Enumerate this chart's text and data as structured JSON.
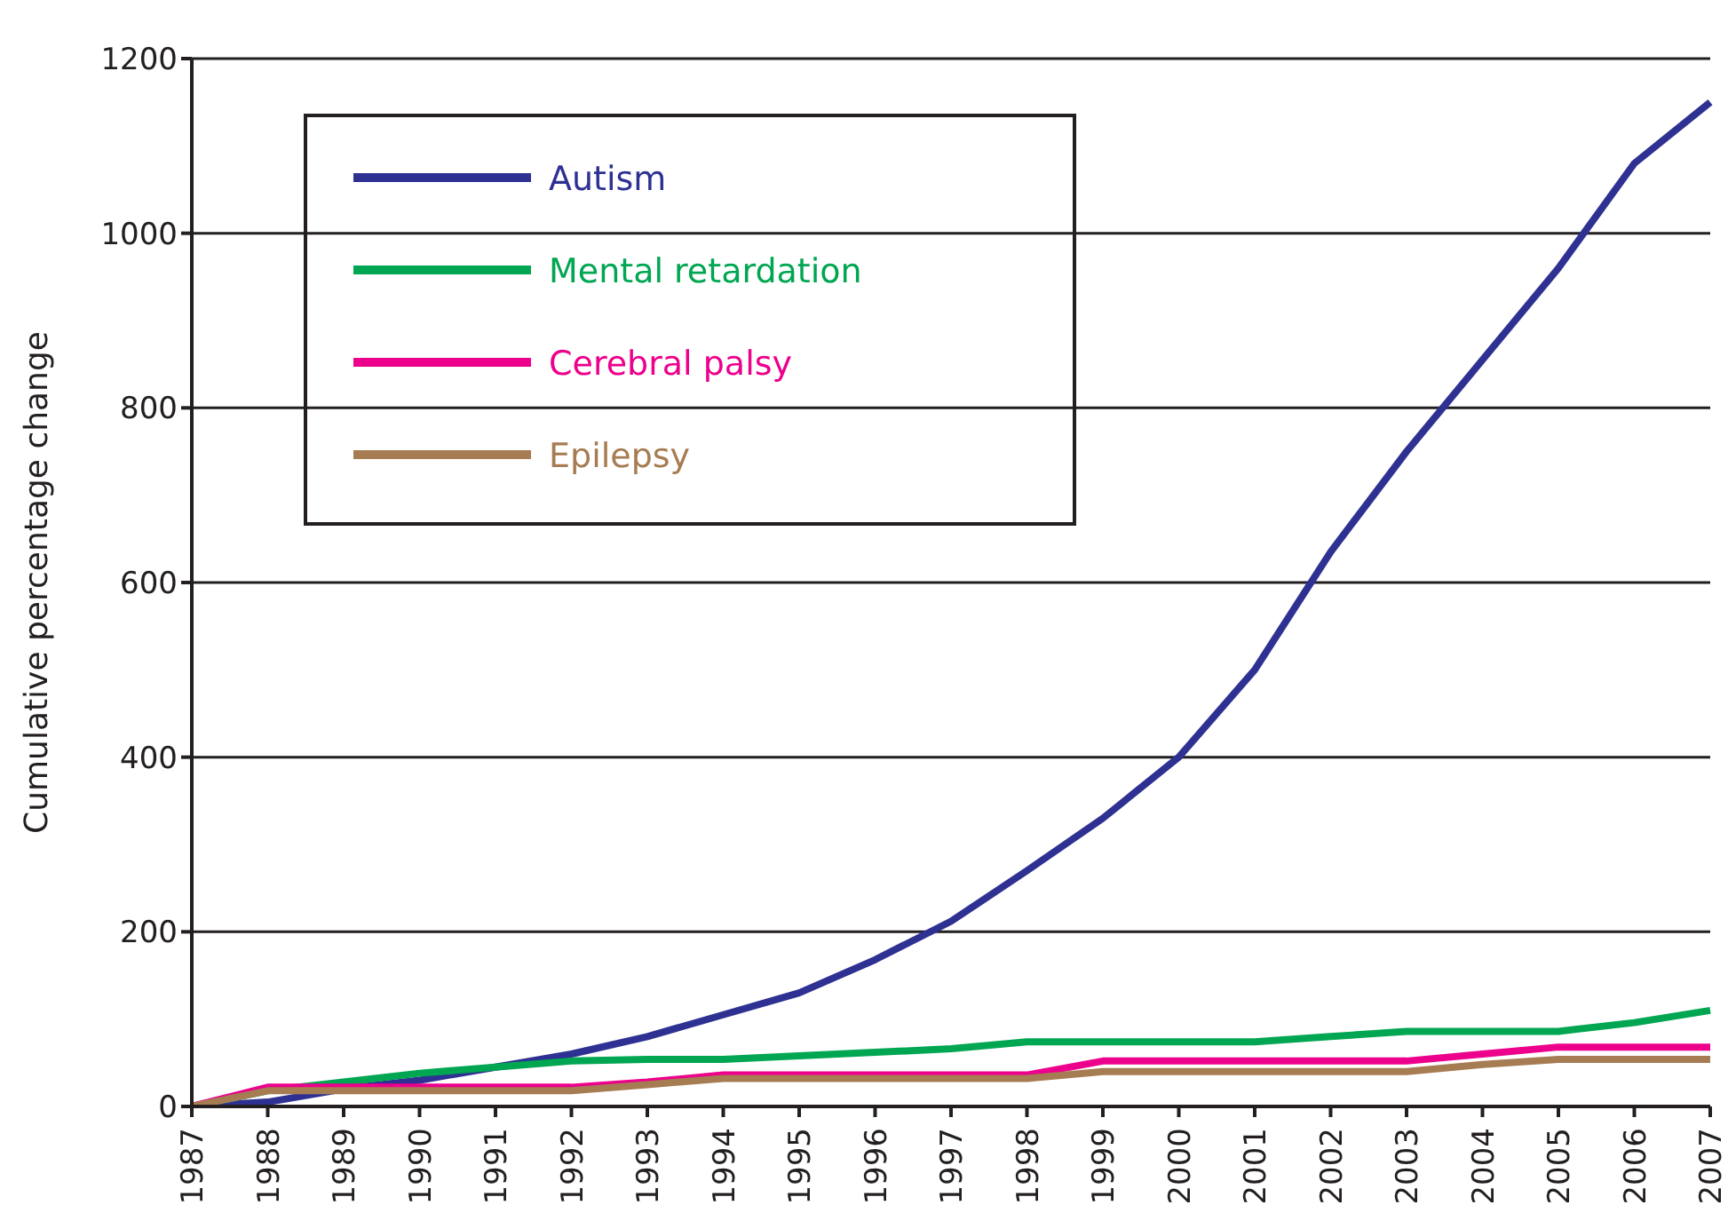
{
  "chart_data": {
    "type": "line",
    "ylabel": "Cumulative percentage change",
    "categories": [
      "1987",
      "1988",
      "1989",
      "1990",
      "1991",
      "1992",
      "1993",
      "1994",
      "1995",
      "1996",
      "1997",
      "1998",
      "1999",
      "2000",
      "2001",
      "2002",
      "2003",
      "2004",
      "2005",
      "2006",
      "2007"
    ],
    "series": [
      {
        "name": "Autism",
        "color": "#2e3192",
        "values": [
          0,
          5,
          20,
          30,
          45,
          60,
          80,
          105,
          130,
          168,
          212,
          270,
          330,
          400,
          500,
          635,
          750,
          855,
          960,
          1080,
          1150
        ]
      },
      {
        "name": "Mental retardation",
        "color": "#00a651",
        "values": [
          0,
          18,
          28,
          38,
          45,
          52,
          54,
          54,
          58,
          62,
          66,
          74,
          74,
          74,
          74,
          80,
          86,
          86,
          86,
          96,
          110
        ]
      },
      {
        "name": "Cerebral palsy",
        "color": "#ec008c",
        "values": [
          0,
          22,
          22,
          22,
          22,
          22,
          28,
          36,
          36,
          36,
          36,
          36,
          52,
          52,
          52,
          52,
          52,
          60,
          68,
          68,
          68
        ]
      },
      {
        "name": "Epilepsy",
        "color": "#a67c52",
        "values": [
          0,
          18,
          18,
          18,
          18,
          18,
          25,
          32,
          32,
          32,
          32,
          32,
          40,
          40,
          40,
          40,
          40,
          48,
          54,
          54,
          54
        ]
      }
    ],
    "ylim": [
      0,
      1200
    ],
    "yticks": [
      0,
      200,
      400,
      600,
      800,
      1000,
      1200
    ],
    "grid": "y",
    "legend": "top left",
    "marker": "none",
    "line_style": "solid"
  }
}
